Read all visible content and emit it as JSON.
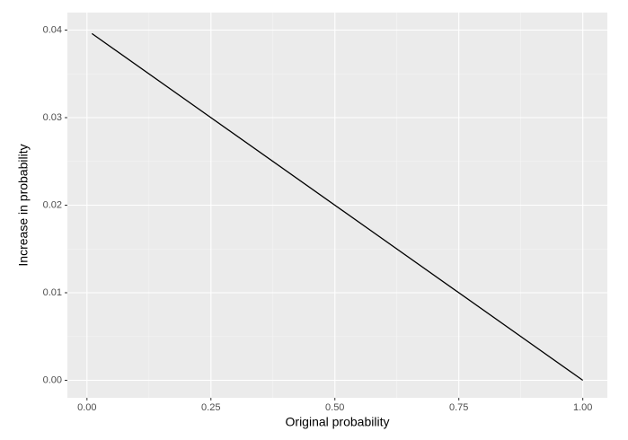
{
  "chart_data": {
    "type": "line",
    "x_label": "Original probability",
    "y_label": "Increase in probability",
    "x": [
      0.01,
      1.0
    ],
    "series": [
      {
        "name": "Increase in probability",
        "color": "#000000",
        "values": [
          0.0396,
          0.0
        ]
      }
    ],
    "xlim": [
      -0.0395,
      1.0495
    ],
    "ylim": [
      -0.002,
      0.042
    ],
    "xticks": [
      {
        "value": 0,
        "label": "0.00"
      },
      {
        "value": 0.25,
        "label": "0.25"
      },
      {
        "value": 0.5,
        "label": "0.50"
      },
      {
        "value": 0.75,
        "label": "0.75"
      },
      {
        "value": 1,
        "label": "1.00"
      }
    ],
    "yticks": [
      {
        "value": 0,
        "label": "0.00"
      },
      {
        "value": 0.01,
        "label": "0.01"
      },
      {
        "value": 0.02,
        "label": "0.02"
      },
      {
        "value": 0.03,
        "label": "0.03"
      },
      {
        "value": 0.04,
        "label": "0.04"
      }
    ],
    "grid": true,
    "minor_grid": true,
    "legend": false
  }
}
